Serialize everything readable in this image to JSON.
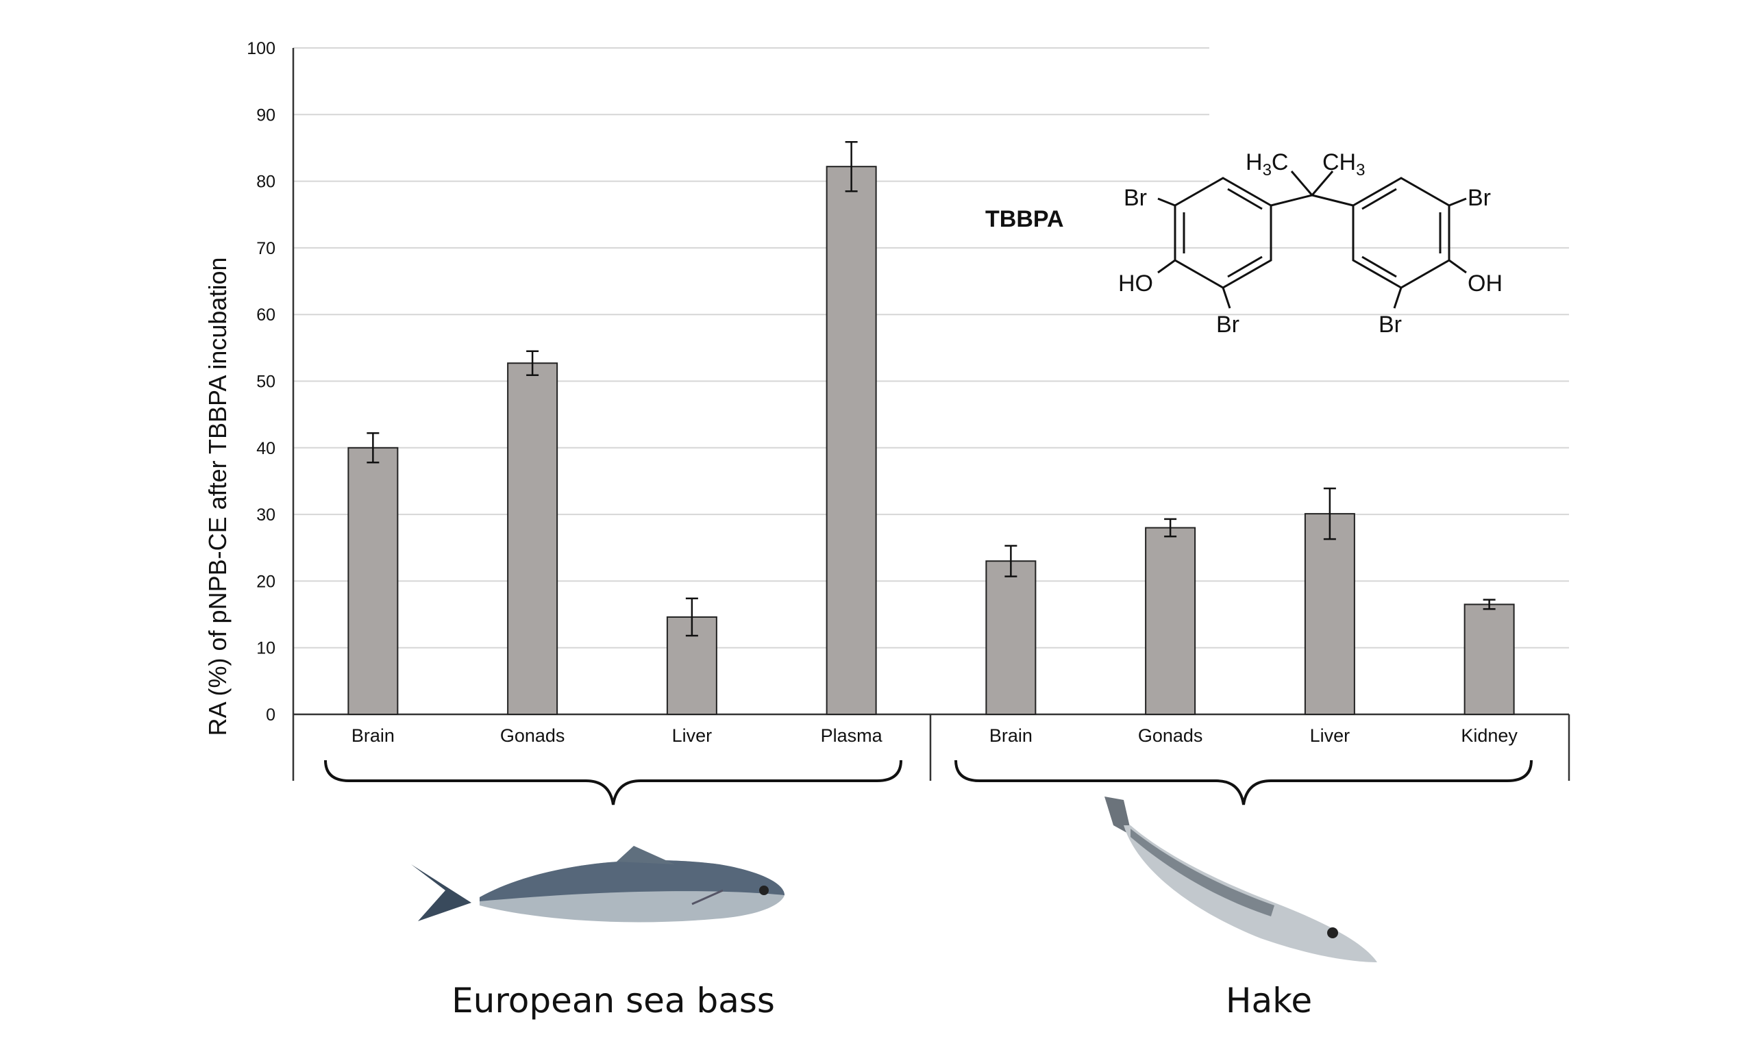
{
  "chart_data": {
    "type": "bar",
    "ylabel": "RA (%) of pNPB-CE after TBBPA incubation",
    "xlabel": "",
    "ylim": [
      0,
      100
    ],
    "yticks": [
      0,
      10,
      20,
      30,
      40,
      50,
      60,
      70,
      80,
      90,
      100
    ],
    "grid": true,
    "bar_color": "#a9a5a3",
    "groups": [
      {
        "name": "European sea bass",
        "categories": [
          "Brain",
          "Gonads",
          "Liver",
          "Plasma"
        ],
        "values": [
          40.0,
          52.7,
          14.6,
          82.2
        ],
        "errors": [
          2.2,
          1.8,
          2.8,
          3.7
        ]
      },
      {
        "name": "Hake",
        "categories": [
          "Brain",
          "Gonads",
          "Liver",
          "Kidney"
        ],
        "values": [
          23.0,
          28.0,
          30.1,
          16.5
        ],
        "errors": [
          2.3,
          1.3,
          3.8,
          0.7
        ]
      }
    ]
  },
  "structure": {
    "compound": "TBBPA",
    "labels": {
      "br": "Br",
      "ho": "HO",
      "oh": "OH",
      "h3c_h": "H",
      "h3c_sub": "3",
      "h3c_c": "C",
      "ch3_ch": "CH",
      "ch3_sub": "3"
    }
  }
}
